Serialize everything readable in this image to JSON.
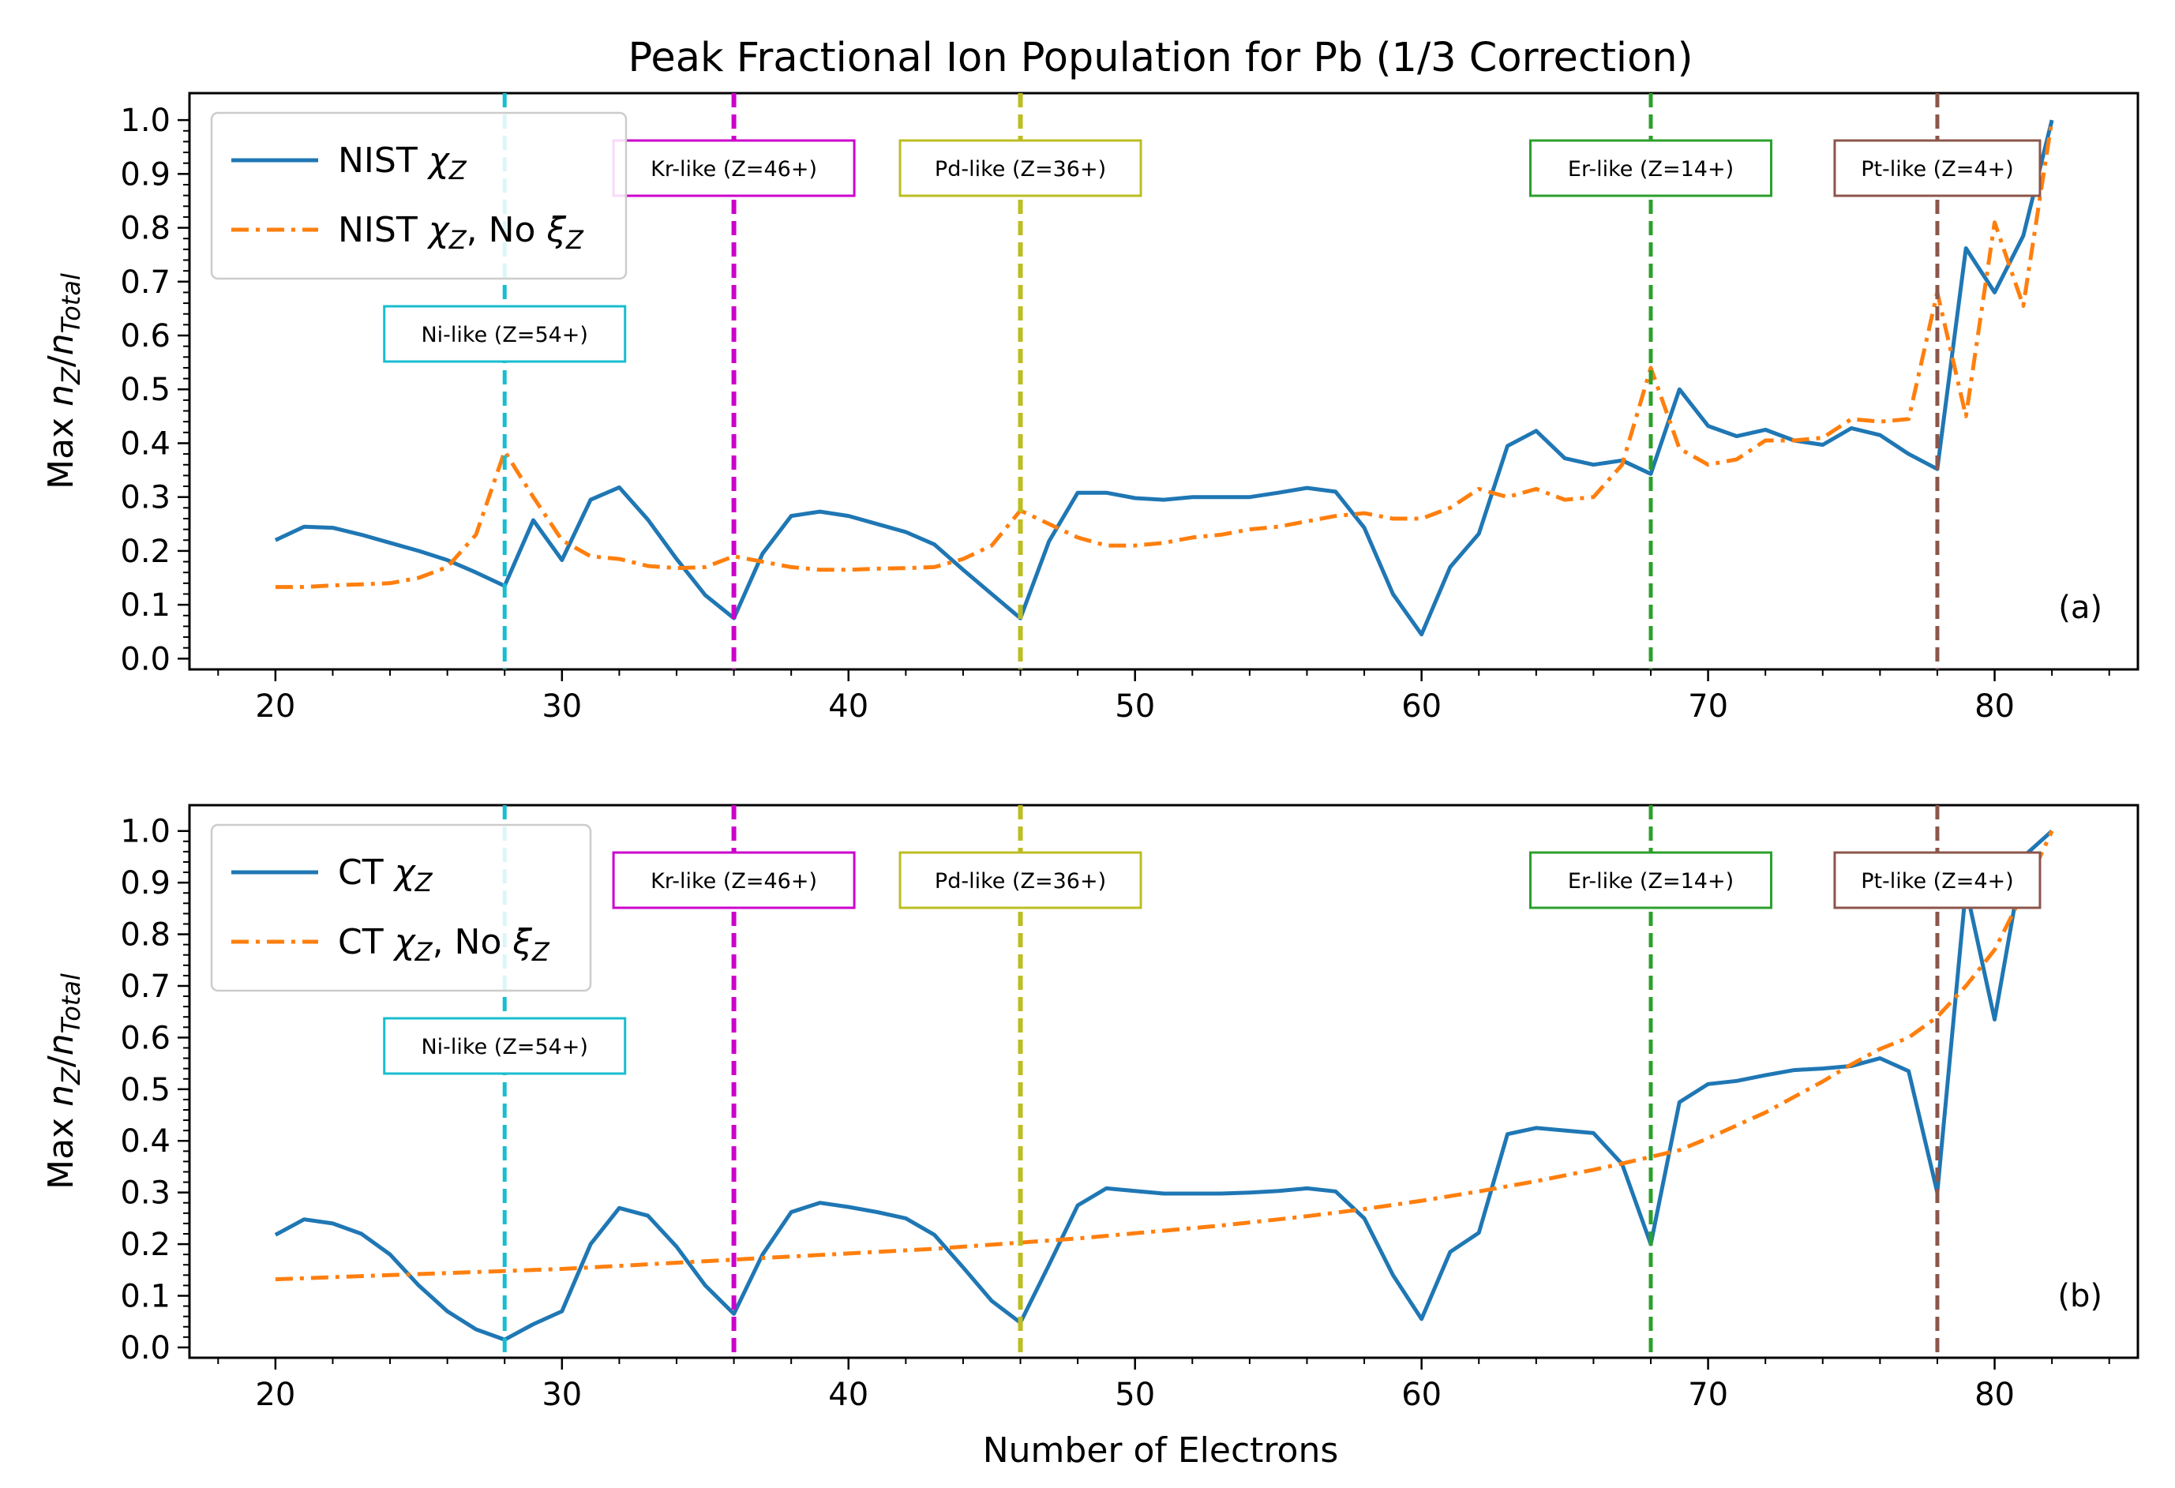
{
  "chart_data": {
    "type": "line",
    "title": "Peak Fractional Ion Population for Pb (1/3 Correction)",
    "xlabel": "Number of Electrons",
    "ylabel_parts": {
      "prefix": "Max ",
      "n": "n",
      "z": "Z",
      "slash": "/",
      "total": "Total"
    },
    "xlim": [
      17,
      85
    ],
    "ylim": [
      -0.02,
      1.05
    ],
    "xticks": [
      20,
      30,
      40,
      50,
      60,
      70,
      80
    ],
    "yticks": [
      0.0,
      0.1,
      0.2,
      0.3,
      0.4,
      0.5,
      0.6,
      0.7,
      0.8,
      0.9,
      1.0
    ],
    "ytick_labels": [
      "0.0",
      "0.1",
      "0.2",
      "0.3",
      "0.4",
      "0.5",
      "0.6",
      "0.7",
      "0.8",
      "0.9",
      "1.0"
    ],
    "colors": {
      "blue": "#1f77b4",
      "orange": "#ff7f0e",
      "cyan": "#17becf",
      "magenta": "#cc00cc",
      "olive": "#bcbd22",
      "green": "#2ca02c",
      "brown": "#8c564b"
    },
    "markers": [
      {
        "x": 28,
        "label": "Ni-like (Z=54+)",
        "color": "#17becf",
        "row": "low",
        "dash": "thin"
      },
      {
        "x": 36,
        "label": "Kr-like (Z=46+)",
        "color": "#cc00cc",
        "row": "high",
        "dash": "thick"
      },
      {
        "x": 46,
        "label": "Pd-like (Z=36+)",
        "color": "#bcbd22",
        "row": "high",
        "dash": "thick"
      },
      {
        "x": 68,
        "label": "Er-like (Z=14+)",
        "color": "#2ca02c",
        "row": "high",
        "dash": "thin"
      },
      {
        "x": 78,
        "label": "Pt-like (Z=4+)",
        "color": "#8c564b",
        "row": "high",
        "dash": "thin"
      }
    ],
    "x": [
      20,
      21,
      22,
      23,
      24,
      25,
      26,
      27,
      28,
      29,
      30,
      31,
      32,
      33,
      34,
      35,
      36,
      37,
      38,
      39,
      40,
      41,
      42,
      43,
      44,
      45,
      46,
      47,
      48,
      49,
      50,
      51,
      52,
      53,
      54,
      55,
      56,
      57,
      58,
      59,
      60,
      61,
      62,
      63,
      64,
      65,
      66,
      67,
      68,
      69,
      70,
      71,
      72,
      73,
      74,
      75,
      76,
      77,
      78,
      79,
      80,
      81,
      82
    ],
    "panels": [
      {
        "label": "(a)",
        "legend": [
          {
            "base": "NIST ",
            "chi": "χ",
            "sub": "Z",
            "tail": "",
            "style": "solid"
          },
          {
            "base": "NIST ",
            "chi": "χ",
            "sub": "Z",
            "tail": ", No ",
            "xi": "ξ",
            "xisub": "Z",
            "style": "dashdot"
          }
        ],
        "series": [
          {
            "name": "NIST χZ",
            "style": "solid",
            "color": "#1f77b4",
            "values": [
              0.22,
              0.245,
              0.243,
              0.23,
              0.215,
              0.2,
              0.183,
              0.16,
              0.135,
              0.257,
              0.183,
              0.295,
              0.318,
              0.258,
              0.185,
              0.118,
              0.075,
              0.195,
              0.265,
              0.273,
              0.265,
              0.25,
              0.235,
              0.212,
              0.165,
              0.12,
              0.075,
              0.218,
              0.308,
              0.308,
              0.298,
              0.295,
              0.3,
              0.3,
              0.3,
              0.308,
              0.317,
              0.31,
              0.243,
              0.12,
              0.045,
              0.17,
              0.232,
              0.395,
              0.423,
              0.372,
              0.36,
              0.368,
              0.343,
              0.5,
              0.432,
              0.413,
              0.425,
              0.405,
              0.397,
              0.428,
              0.415,
              0.38,
              0.352,
              0.762,
              0.68,
              0.785,
              1.0
            ]
          },
          {
            "name": "NIST χZ, No ξZ",
            "style": "dashdot",
            "color": "#ff7f0e",
            "values": [
              0.133,
              0.133,
              0.136,
              0.138,
              0.14,
              0.15,
              0.17,
              0.23,
              0.385,
              0.3,
              0.22,
              0.19,
              0.185,
              0.172,
              0.168,
              0.17,
              0.19,
              0.18,
              0.17,
              0.165,
              0.165,
              0.167,
              0.168,
              0.17,
              0.185,
              0.21,
              0.275,
              0.25,
              0.225,
              0.21,
              0.21,
              0.215,
              0.225,
              0.23,
              0.24,
              0.245,
              0.255,
              0.265,
              0.27,
              0.26,
              0.26,
              0.28,
              0.315,
              0.3,
              0.315,
              0.295,
              0.3,
              0.36,
              0.54,
              0.39,
              0.36,
              0.37,
              0.405,
              0.405,
              0.41,
              0.445,
              0.44,
              0.445,
              0.68,
              0.45,
              0.81,
              0.655,
              1.0
            ]
          }
        ]
      },
      {
        "label": "(b)",
        "legend": [
          {
            "base": "CT ",
            "chi": "χ",
            "sub": "Z",
            "tail": "",
            "style": "solid"
          },
          {
            "base": "CT ",
            "chi": "χ",
            "sub": "Z",
            "tail": ", No ",
            "xi": "ξ",
            "xisub": "Z",
            "style": "dashdot"
          }
        ],
        "series": [
          {
            "name": "CT χZ",
            "style": "solid",
            "color": "#1f77b4",
            "values": [
              0.218,
              0.248,
              0.24,
              0.22,
              0.18,
              0.12,
              0.07,
              0.035,
              0.015,
              0.045,
              0.07,
              0.2,
              0.27,
              0.255,
              0.195,
              0.12,
              0.065,
              0.18,
              0.262,
              0.28,
              0.272,
              0.262,
              0.25,
              0.218,
              0.155,
              0.09,
              0.048,
              0.16,
              0.275,
              0.308,
              0.303,
              0.298,
              0.298,
              0.298,
              0.3,
              0.303,
              0.308,
              0.302,
              0.25,
              0.14,
              0.055,
              0.185,
              0.222,
              0.413,
              0.425,
              0.42,
              0.415,
              0.355,
              0.2,
              0.475,
              0.51,
              0.516,
              0.527,
              0.537,
              0.54,
              0.545,
              0.56,
              0.535,
              0.3,
              0.89,
              0.635,
              0.95,
              1.0
            ]
          },
          {
            "name": "CT χZ, No ξZ",
            "style": "dashdot",
            "color": "#ff7f0e",
            "values": [
              0.132,
              0.134,
              0.136,
              0.138,
              0.14,
              0.142,
              0.144,
              0.146,
              0.148,
              0.15,
              0.152,
              0.155,
              0.158,
              0.161,
              0.164,
              0.167,
              0.17,
              0.173,
              0.176,
              0.179,
              0.182,
              0.185,
              0.188,
              0.191,
              0.195,
              0.199,
              0.203,
              0.207,
              0.211,
              0.216,
              0.221,
              0.226,
              0.231,
              0.236,
              0.242,
              0.248,
              0.254,
              0.261,
              0.268,
              0.276,
              0.284,
              0.293,
              0.302,
              0.312,
              0.322,
              0.333,
              0.344,
              0.356,
              0.369,
              0.382,
              0.405,
              0.43,
              0.455,
              0.485,
              0.515,
              0.548,
              0.578,
              0.6,
              0.64,
              0.7,
              0.77,
              0.88,
              1.0
            ]
          }
        ]
      }
    ]
  }
}
